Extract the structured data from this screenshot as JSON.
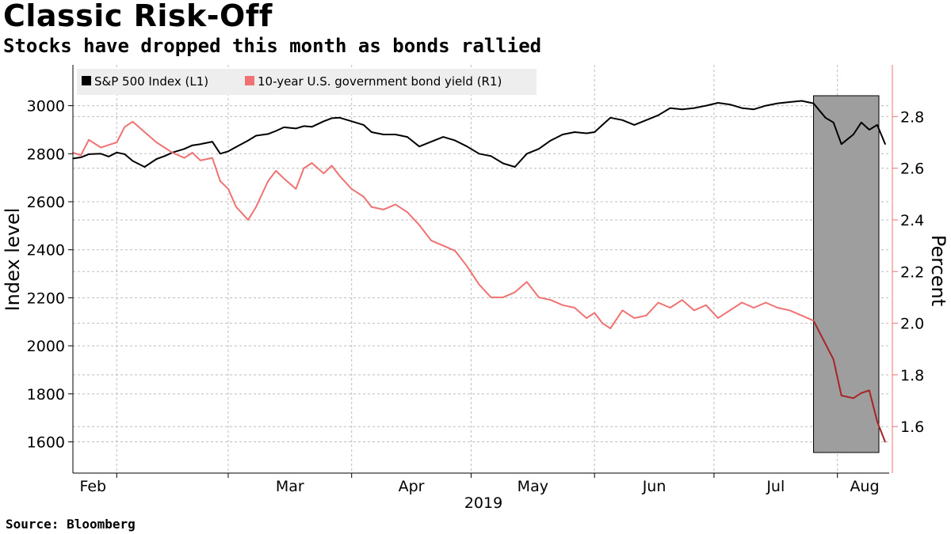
{
  "header": {
    "title": "Classic Risk-Off",
    "subtitle": "Stocks have dropped this month as bonds rallied"
  },
  "footer": {
    "source": "Source: Bloomberg"
  },
  "colors": {
    "sp500": "#000000",
    "yield": "#f07272",
    "yield_axis": "#f07272",
    "highlight": "#9e9e9e",
    "grid": "#bdbdbd",
    "legend_bg": "#eeeeee"
  },
  "chart_data": {
    "type": "line",
    "title": "Classic Risk-Off",
    "subtitle": "Stocks have dropped this month as bonds rallied",
    "year_label": "2019",
    "x_labels": [
      "Feb",
      "Mar",
      "Apr",
      "May",
      "Jun",
      "Jul",
      "Aug"
    ],
    "x_label_dates": [
      "2019-02-01",
      "2019-03-01",
      "2019-04-01",
      "2019-05-01",
      "2019-06-01",
      "2019-07-01",
      "2019-08-01"
    ],
    "x_range": [
      "2019-01-21",
      "2019-08-14"
    ],
    "left_axis": {
      "label": "Index level",
      "ylim": [
        1470,
        3170
      ],
      "ticks": [
        1600,
        1800,
        2000,
        2200,
        2400,
        2600,
        2800,
        3000
      ]
    },
    "right_axis": {
      "label": "Percent",
      "ylim": [
        1.42,
        3.0
      ],
      "ticks": [
        1.6,
        1.8,
        2.0,
        2.2,
        2.4,
        2.6,
        2.8
      ]
    },
    "legend": [
      {
        "label": "S&P 500 Index  (L1)",
        "series": "sp500"
      },
      {
        "label": "10-year U.S. government bond yield (R1)",
        "series": "yield"
      }
    ],
    "highlight_range": [
      "2019-07-26",
      "2019-08-14"
    ],
    "series": [
      {
        "name": "S&P 500 Index  (L1)",
        "key": "sp500",
        "axis": "left",
        "x": [
          "2019-01-21",
          "2019-01-23",
          "2019-01-25",
          "2019-01-28",
          "2019-01-30",
          "2019-02-01",
          "2019-02-03",
          "2019-02-05",
          "2019-02-08",
          "2019-02-11",
          "2019-02-13",
          "2019-02-15",
          "2019-02-18",
          "2019-02-20",
          "2019-02-22",
          "2019-02-25",
          "2019-02-27",
          "2019-03-01",
          "2019-03-03",
          "2019-03-06",
          "2019-03-08",
          "2019-03-11",
          "2019-03-13",
          "2019-03-15",
          "2019-03-18",
          "2019-03-20",
          "2019-03-22",
          "2019-03-25",
          "2019-03-27",
          "2019-03-29",
          "2019-04-01",
          "2019-04-04",
          "2019-04-06",
          "2019-04-09",
          "2019-04-12",
          "2019-04-15",
          "2019-04-18",
          "2019-04-21",
          "2019-04-24",
          "2019-04-27",
          "2019-04-30",
          "2019-05-03",
          "2019-05-06",
          "2019-05-09",
          "2019-05-12",
          "2019-05-15",
          "2019-05-18",
          "2019-05-21",
          "2019-05-24",
          "2019-05-27",
          "2019-05-30",
          "2019-06-01",
          "2019-06-03",
          "2019-06-05",
          "2019-06-08",
          "2019-06-11",
          "2019-06-14",
          "2019-06-17",
          "2019-06-20",
          "2019-06-23",
          "2019-06-26",
          "2019-06-29",
          "2019-07-02",
          "2019-07-05",
          "2019-07-08",
          "2019-07-11",
          "2019-07-14",
          "2019-07-17",
          "2019-07-20",
          "2019-07-23",
          "2019-07-26",
          "2019-07-29",
          "2019-07-31",
          "2019-08-02",
          "2019-08-05",
          "2019-08-07",
          "2019-08-09",
          "2019-08-11",
          "2019-08-13"
        ],
        "values": [
          2780,
          2785,
          2798,
          2800,
          2788,
          2805,
          2798,
          2770,
          2745,
          2778,
          2790,
          2805,
          2820,
          2835,
          2840,
          2850,
          2800,
          2810,
          2828,
          2855,
          2875,
          2882,
          2895,
          2910,
          2905,
          2915,
          2912,
          2935,
          2948,
          2950,
          2935,
          2920,
          2890,
          2880,
          2880,
          2870,
          2830,
          2850,
          2870,
          2855,
          2830,
          2800,
          2790,
          2760,
          2745,
          2800,
          2820,
          2855,
          2880,
          2890,
          2885,
          2890,
          2920,
          2950,
          2940,
          2920,
          2940,
          2960,
          2990,
          2985,
          2990,
          3000,
          3012,
          3005,
          2990,
          2985,
          3000,
          3010,
          3015,
          3020,
          3010,
          2950,
          2930,
          2840,
          2880,
          2930,
          2900,
          2920,
          2840
        ]
      },
      {
        "name": "10-year U.S. government bond yield (R1)",
        "key": "yield",
        "axis": "right",
        "x": [
          "2019-01-21",
          "2019-01-23",
          "2019-01-25",
          "2019-01-28",
          "2019-01-30",
          "2019-02-01",
          "2019-02-03",
          "2019-02-05",
          "2019-02-08",
          "2019-02-11",
          "2019-02-13",
          "2019-02-15",
          "2019-02-18",
          "2019-02-20",
          "2019-02-22",
          "2019-02-25",
          "2019-02-27",
          "2019-03-01",
          "2019-03-03",
          "2019-03-06",
          "2019-03-08",
          "2019-03-11",
          "2019-03-13",
          "2019-03-15",
          "2019-03-18",
          "2019-03-20",
          "2019-03-22",
          "2019-03-25",
          "2019-03-27",
          "2019-03-29",
          "2019-04-01",
          "2019-04-04",
          "2019-04-06",
          "2019-04-09",
          "2019-04-12",
          "2019-04-15",
          "2019-04-18",
          "2019-04-21",
          "2019-04-24",
          "2019-04-27",
          "2019-04-30",
          "2019-05-03",
          "2019-05-06",
          "2019-05-09",
          "2019-05-12",
          "2019-05-15",
          "2019-05-18",
          "2019-05-21",
          "2019-05-24",
          "2019-05-27",
          "2019-05-30",
          "2019-06-01",
          "2019-06-03",
          "2019-06-05",
          "2019-06-08",
          "2019-06-11",
          "2019-06-14",
          "2019-06-17",
          "2019-06-20",
          "2019-06-23",
          "2019-06-26",
          "2019-06-29",
          "2019-07-02",
          "2019-07-05",
          "2019-07-08",
          "2019-07-11",
          "2019-07-14",
          "2019-07-17",
          "2019-07-20",
          "2019-07-23",
          "2019-07-26",
          "2019-07-29",
          "2019-07-31",
          "2019-08-02",
          "2019-08-05",
          "2019-08-07",
          "2019-08-09",
          "2019-08-11",
          "2019-08-13"
        ],
        "values": [
          2.66,
          2.65,
          2.71,
          2.68,
          2.69,
          2.7,
          2.76,
          2.78,
          2.74,
          2.7,
          2.68,
          2.66,
          2.64,
          2.66,
          2.63,
          2.64,
          2.55,
          2.52,
          2.45,
          2.4,
          2.45,
          2.55,
          2.59,
          2.56,
          2.52,
          2.6,
          2.62,
          2.58,
          2.61,
          2.57,
          2.52,
          2.49,
          2.45,
          2.44,
          2.46,
          2.43,
          2.38,
          2.32,
          2.3,
          2.28,
          2.22,
          2.15,
          2.1,
          2.1,
          2.12,
          2.16,
          2.1,
          2.09,
          2.07,
          2.06,
          2.02,
          2.04,
          2.0,
          1.98,
          2.05,
          2.02,
          2.03,
          2.08,
          2.06,
          2.09,
          2.05,
          2.07,
          2.02,
          2.05,
          2.08,
          2.06,
          2.08,
          2.06,
          2.05,
          2.03,
          2.01,
          1.92,
          1.86,
          1.72,
          1.71,
          1.73,
          1.74,
          1.62,
          1.54
        ]
      }
    ]
  }
}
